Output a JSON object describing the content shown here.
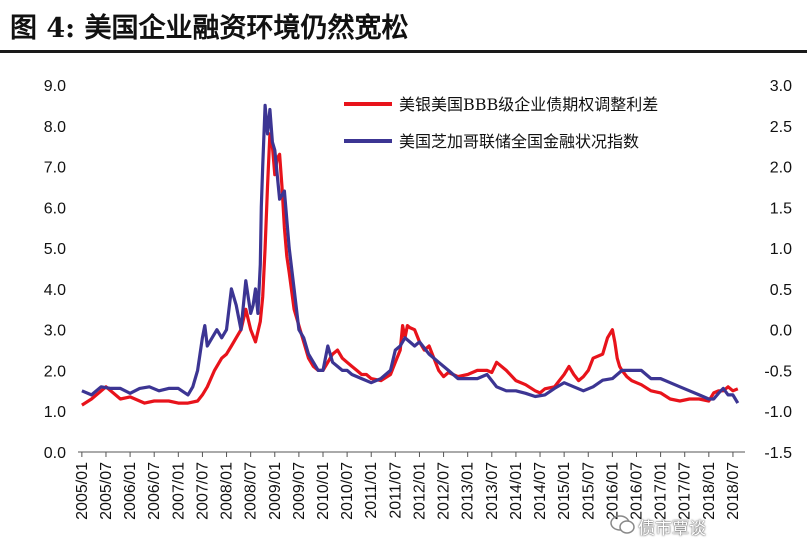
{
  "title": "图 4:  美国企业融资环境仍然宽松",
  "watermark": "债市覃谈",
  "colors": {
    "red": "#e8131b",
    "blue": "#3c3593",
    "axis": "#555555",
    "rule": "#1a1a1a"
  },
  "chart_data": {
    "type": "line",
    "title": "",
    "x_tick_labels": [
      "2005/01",
      "2005/07",
      "2006/01",
      "2006/07",
      "2007/01",
      "2007/07",
      "2008/01",
      "2008/07",
      "2009/01",
      "2009/07",
      "2010/01",
      "2010/07",
      "2011/01",
      "2011/07",
      "2012/01",
      "2012/07",
      "2013/01",
      "2013/07",
      "2014/01",
      "2014/07",
      "2015/01",
      "2015/07",
      "2016/01",
      "2016/07",
      "2017/01",
      "2017/07",
      "2018/01",
      "2018/07"
    ],
    "y_left": {
      "range": [
        0.0,
        9.0
      ],
      "ticks": [
        "0.0",
        "1.0",
        "2.0",
        "3.0",
        "4.0",
        "5.0",
        "6.0",
        "7.0",
        "8.0",
        "9.0"
      ]
    },
    "y_right": {
      "range": [
        -1.5,
        3.0
      ],
      "ticks": [
        "-1.5",
        "-1.0",
        "-0.5",
        "0.0",
        "0.5",
        "1.0",
        "1.5",
        "2.0",
        "2.5",
        "3.0"
      ]
    },
    "legend": {
      "position": "top-right"
    },
    "series": [
      {
        "name": "美银美国BBB级企业债期权调整利差",
        "axis": "left",
        "color": "#e8131b",
        "x": [
          2005.0,
          2005.2,
          2005.5,
          2005.8,
          2006.0,
          2006.3,
          2006.5,
          2006.8,
          2007.0,
          2007.2,
          2007.4,
          2007.5,
          2007.6,
          2007.75,
          2007.9,
          2008.0,
          2008.1,
          2008.2,
          2008.3,
          2008.4,
          2008.5,
          2008.6,
          2008.7,
          2008.75,
          2008.8,
          2008.85,
          2008.9,
          2008.95,
          2009.0,
          2009.05,
          2009.1,
          2009.15,
          2009.2,
          2009.25,
          2009.3,
          2009.4,
          2009.5,
          2009.6,
          2009.7,
          2009.8,
          2009.9,
          2010.0,
          2010.1,
          2010.2,
          2010.3,
          2010.4,
          2010.5,
          2010.6,
          2010.7,
          2010.8,
          2010.9,
          2011.0,
          2011.2,
          2011.4,
          2011.5,
          2011.6,
          2011.65,
          2011.7,
          2011.75,
          2011.8,
          2011.9,
          2012.0,
          2012.1,
          2012.2,
          2012.3,
          2012.4,
          2012.5,
          2012.6,
          2012.8,
          2013.0,
          2013.2,
          2013.4,
          2013.5,
          2013.6,
          2013.8,
          2014.0,
          2014.2,
          2014.4,
          2014.5,
          2014.6,
          2014.8,
          2015.0,
          2015.1,
          2015.2,
          2015.3,
          2015.4,
          2015.5,
          2015.6,
          2015.8,
          2015.9,
          2016.0,
          2016.05,
          2016.1,
          2016.15,
          2016.2,
          2016.3,
          2016.4,
          2016.5,
          2016.6,
          2016.8,
          2017.0,
          2017.2,
          2017.4,
          2017.6,
          2017.8,
          2018.0,
          2018.1,
          2018.2,
          2018.3,
          2018.4,
          2018.5,
          2018.6
        ],
        "values": [
          1.15,
          1.3,
          1.6,
          1.3,
          1.35,
          1.2,
          1.25,
          1.25,
          1.2,
          1.2,
          1.25,
          1.4,
          1.6,
          2.0,
          2.3,
          2.4,
          2.6,
          2.8,
          3.0,
          3.5,
          3.0,
          2.7,
          3.2,
          3.8,
          5.0,
          6.5,
          7.8,
          7.5,
          6.8,
          7.2,
          7.3,
          6.5,
          5.5,
          4.8,
          4.4,
          3.5,
          3.1,
          2.7,
          2.3,
          2.1,
          2.0,
          2.0,
          2.2,
          2.4,
          2.5,
          2.3,
          2.2,
          2.1,
          2.0,
          1.9,
          1.9,
          1.8,
          1.75,
          1.9,
          2.2,
          2.5,
          3.1,
          2.8,
          3.1,
          3.05,
          3.0,
          2.7,
          2.5,
          2.6,
          2.3,
          2.0,
          1.85,
          1.95,
          1.85,
          1.9,
          2.0,
          2.0,
          1.95,
          2.2,
          2.0,
          1.75,
          1.65,
          1.5,
          1.45,
          1.55,
          1.6,
          1.9,
          2.1,
          1.9,
          1.75,
          1.85,
          2.0,
          2.3,
          2.4,
          2.8,
          3.0,
          2.7,
          2.3,
          2.1,
          2.0,
          1.85,
          1.75,
          1.7,
          1.65,
          1.5,
          1.45,
          1.3,
          1.25,
          1.3,
          1.3,
          1.25,
          1.45,
          1.5,
          1.5,
          1.6,
          1.5,
          1.55
        ]
      },
      {
        "name": "美国芝加哥联储全国金融状况指数",
        "axis": "right",
        "color": "#3c3593",
        "x": [
          2005.0,
          2005.2,
          2005.4,
          2005.6,
          2005.8,
          2006.0,
          2006.2,
          2006.4,
          2006.6,
          2006.8,
          2007.0,
          2007.2,
          2007.3,
          2007.4,
          2007.45,
          2007.5,
          2007.55,
          2007.6,
          2007.7,
          2007.8,
          2007.9,
          2008.0,
          2008.1,
          2008.2,
          2008.3,
          2008.35,
          2008.4,
          2008.45,
          2008.5,
          2008.55,
          2008.6,
          2008.65,
          2008.7,
          2008.72,
          2008.75,
          2008.8,
          2008.85,
          2008.9,
          2008.95,
          2009.0,
          2009.1,
          2009.2,
          2009.3,
          2009.4,
          2009.5,
          2009.6,
          2009.7,
          2009.8,
          2009.9,
          2010.0,
          2010.1,
          2010.2,
          2010.3,
          2010.4,
          2010.5,
          2010.6,
          2010.8,
          2011.0,
          2011.2,
          2011.4,
          2011.5,
          2011.6,
          2011.7,
          2011.8,
          2011.9,
          2012.0,
          2012.2,
          2012.4,
          2012.6,
          2012.8,
          2013.0,
          2013.2,
          2013.4,
          2013.6,
          2013.8,
          2014.0,
          2014.2,
          2014.4,
          2014.6,
          2014.8,
          2015.0,
          2015.2,
          2015.4,
          2015.6,
          2015.8,
          2016.0,
          2016.2,
          2016.4,
          2016.6,
          2016.8,
          2017.0,
          2017.2,
          2017.4,
          2017.6,
          2017.8,
          2018.0,
          2018.1,
          2018.2,
          2018.3,
          2018.4,
          2018.5,
          2018.6
        ],
        "values": [
          -0.75,
          -0.8,
          -0.7,
          -0.72,
          -0.72,
          -0.78,
          -0.72,
          -0.7,
          -0.75,
          -0.72,
          -0.72,
          -0.8,
          -0.7,
          -0.5,
          -0.3,
          -0.1,
          0.05,
          -0.2,
          -0.1,
          0.0,
          -0.1,
          0.0,
          0.5,
          0.3,
          0.0,
          0.3,
          0.6,
          0.4,
          0.2,
          0.3,
          0.5,
          0.2,
          0.8,
          1.5,
          2.0,
          2.75,
          2.4,
          2.7,
          2.3,
          2.2,
          1.6,
          1.7,
          1.0,
          0.5,
          0.0,
          -0.1,
          -0.3,
          -0.4,
          -0.5,
          -0.5,
          -0.2,
          -0.4,
          -0.45,
          -0.5,
          -0.5,
          -0.55,
          -0.6,
          -0.65,
          -0.6,
          -0.5,
          -0.25,
          -0.2,
          -0.1,
          -0.15,
          -0.2,
          -0.15,
          -0.3,
          -0.4,
          -0.5,
          -0.6,
          -0.6,
          -0.6,
          -0.55,
          -0.7,
          -0.75,
          -0.75,
          -0.78,
          -0.82,
          -0.8,
          -0.72,
          -0.65,
          -0.7,
          -0.75,
          -0.7,
          -0.62,
          -0.6,
          -0.5,
          -0.5,
          -0.5,
          -0.6,
          -0.6,
          -0.65,
          -0.7,
          -0.75,
          -0.8,
          -0.85,
          -0.85,
          -0.78,
          -0.72,
          -0.8,
          -0.8,
          -0.9
        ]
      }
    ]
  }
}
